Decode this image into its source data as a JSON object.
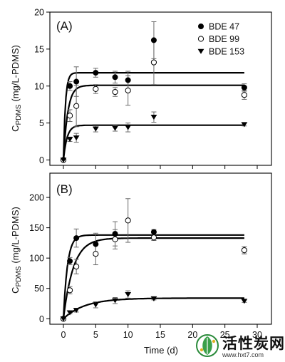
{
  "chart_data": [
    {
      "type": "scatter",
      "panel_label": "(A)",
      "ylabel_main": "C",
      "ylabel_sub": "PDMS",
      "ylabel_unit": "(mg/L-PDMS)",
      "xlim": [
        0,
        30
      ],
      "ylim": [
        0,
        20
      ],
      "y_ticks": [
        0,
        5,
        10,
        15,
        20
      ],
      "x_ticks": [
        0,
        5,
        10,
        15,
        20,
        25,
        30
      ],
      "legend_position": "top-right",
      "legend": [
        {
          "name": "BDE 47",
          "marker": "filled-circle"
        },
        {
          "name": "BDE 99",
          "marker": "open-circle"
        },
        {
          "name": "BDE 153",
          "marker": "filled-triangle-down"
        }
      ],
      "series": [
        {
          "name": "BDE 47",
          "marker": "filled-circle",
          "x": [
            0,
            1,
            2,
            5,
            8,
            10,
            14,
            28
          ],
          "y": [
            0,
            10.0,
            10.6,
            11.8,
            11.2,
            10.8,
            16.2,
            9.8
          ],
          "err": [
            0,
            0.6,
            2.0,
            0.6,
            0.8,
            1.2,
            2.5,
            0.5
          ],
          "fit_plateau": 11.8,
          "fit_rate": 3.2
        },
        {
          "name": "BDE 99",
          "marker": "open-circle",
          "x": [
            0,
            1,
            2,
            5,
            8,
            10,
            14,
            28
          ],
          "y": [
            0,
            6.0,
            7.3,
            9.6,
            9.2,
            9.4,
            13.2,
            8.8
          ],
          "err": [
            0,
            0.8,
            2.8,
            0.6,
            0.6,
            2.0,
            3.0,
            0.6
          ],
          "fit_plateau": 10.1,
          "fit_rate": 1.5
        },
        {
          "name": "BDE 153",
          "marker": "filled-triangle-down",
          "x": [
            0,
            1,
            2,
            5,
            8,
            10,
            14,
            28
          ],
          "y": [
            0,
            2.8,
            3.0,
            4.2,
            4.3,
            4.4,
            5.8,
            4.8
          ],
          "err": [
            0,
            0.3,
            0.6,
            0.4,
            0.4,
            0.6,
            0.7,
            0.2
          ],
          "fit_plateau": 4.7,
          "fit_rate": 1.8
        }
      ]
    },
    {
      "type": "scatter",
      "panel_label": "(B)",
      "ylabel_main": "C",
      "ylabel_sub": "PDMS",
      "ylabel_unit": "(mg/L-PDMS)",
      "xlabel": "Time (d)",
      "xlim": [
        0,
        30
      ],
      "ylim": [
        0,
        240
      ],
      "y_ticks": [
        0,
        50,
        100,
        150,
        200
      ],
      "x_ticks": [
        0,
        5,
        10,
        15,
        20,
        25,
        30
      ],
      "series": [
        {
          "name": "BDE 47",
          "marker": "filled-circle",
          "x": [
            0,
            1,
            2,
            5,
            8,
            14,
            28
          ],
          "y": [
            0,
            95,
            133,
            123,
            140,
            143,
            113
          ],
          "err": [
            0,
            6,
            15,
            18,
            20,
            4,
            6
          ],
          "fit_plateau": 138,
          "fit_rate": 1.6
        },
        {
          "name": "BDE 99",
          "marker": "open-circle",
          "x": [
            0,
            1,
            2,
            5,
            8,
            10,
            14,
            28
          ],
          "y": [
            0,
            47,
            86,
            107,
            131,
            162,
            134,
            113
          ],
          "err": [
            0,
            6,
            12,
            18,
            16,
            36,
            5,
            6
          ],
          "fit_plateau": 133,
          "fit_rate": 0.65
        },
        {
          "name": "BDE 153",
          "marker": "filled-triangle-down",
          "x": [
            0,
            1,
            2,
            5,
            8,
            10,
            14,
            28
          ],
          "y": [
            0,
            10,
            14,
            23,
            30,
            40,
            33,
            29
          ],
          "err": [
            0,
            2,
            3,
            5,
            5,
            6,
            2,
            2
          ],
          "fit_plateau": 34,
          "fit_rate": 0.3
        }
      ]
    }
  ],
  "watermark": {
    "text_cn": "活性炭网",
    "url": "www.hxt7.com",
    "logo_icon": "leaf-globe-icon"
  }
}
